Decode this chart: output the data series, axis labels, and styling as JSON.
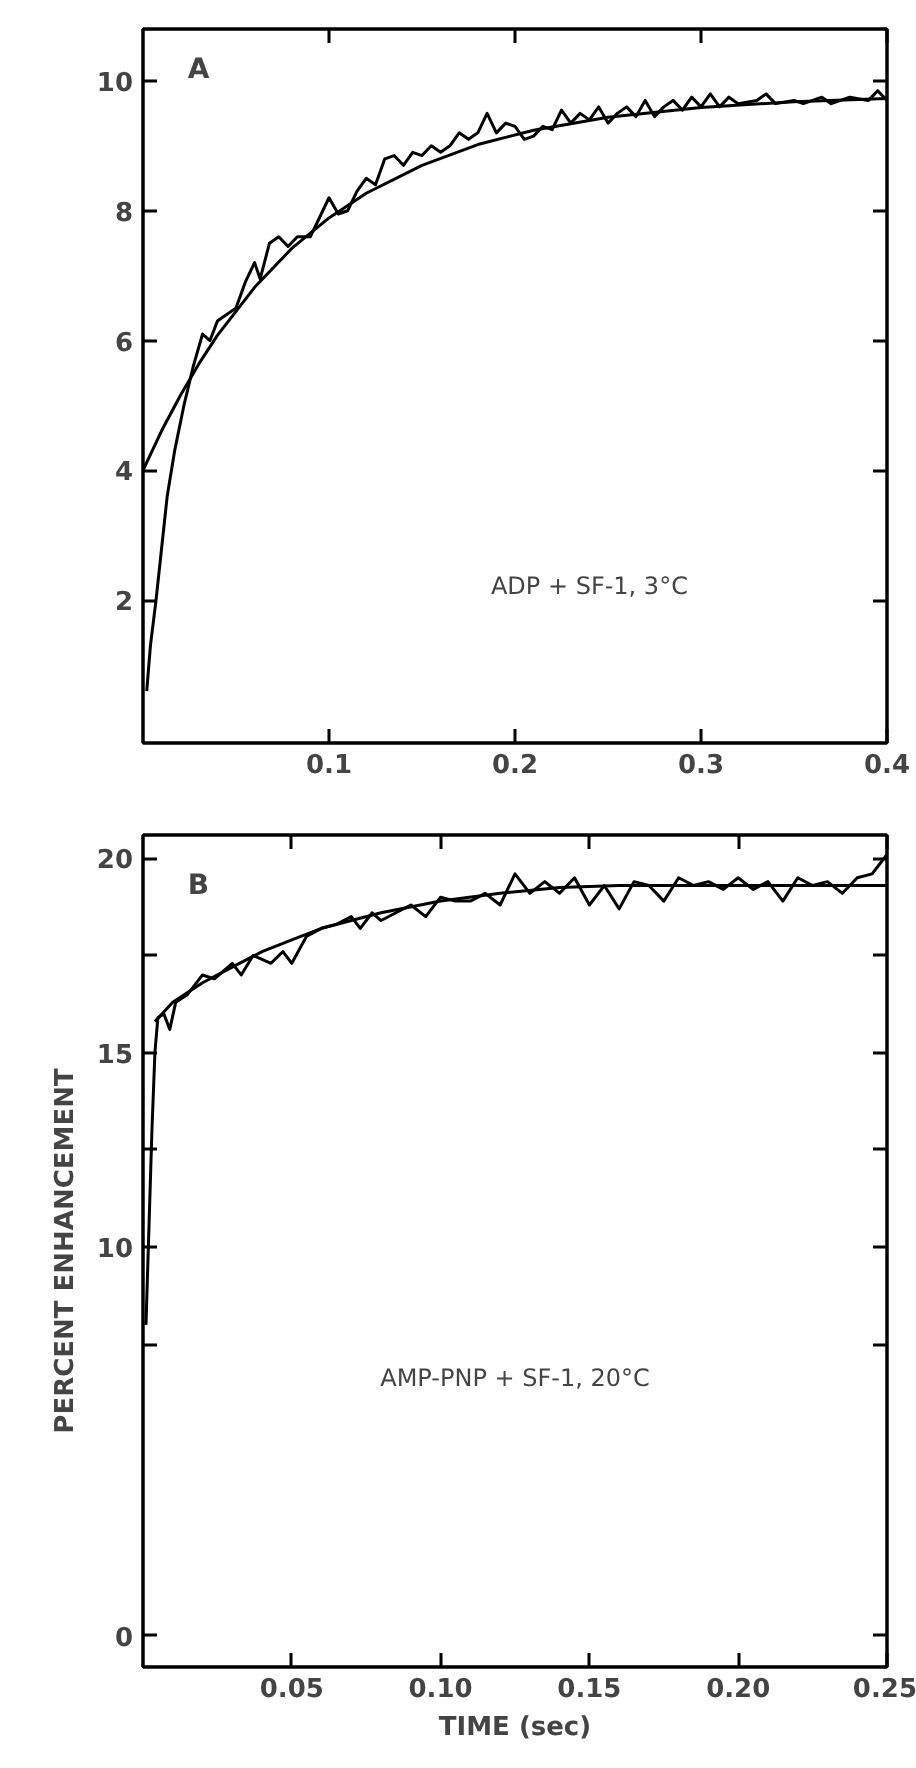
{
  "chart_data": [
    {
      "type": "line",
      "annotations": [
        "A",
        "ADP + SF-1, 3°C"
      ],
      "xlim": [
        0,
        0.4
      ],
      "ylim": [
        -0.2,
        10.8
      ],
      "xticks": [
        0.1,
        0.2,
        0.3,
        0.4
      ],
      "yticks": [
        2,
        4,
        6,
        8,
        10
      ],
      "grid": false,
      "series": [
        {
          "color": "#000000",
          "x": [
            0.002,
            0.004,
            0.007,
            0.01,
            0.013,
            0.017,
            0.022,
            0.027,
            0.032,
            0.036,
            0.04,
            0.045,
            0.05,
            0.055,
            0.06,
            0.063,
            0.068,
            0.073,
            0.078,
            0.083,
            0.09,
            0.095,
            0.1,
            0.105,
            0.11,
            0.115,
            0.12,
            0.125,
            0.13,
            0.135,
            0.14,
            0.145,
            0.15,
            0.155,
            0.16,
            0.165,
            0.17,
            0.175,
            0.18,
            0.185,
            0.19,
            0.195,
            0.2,
            0.205,
            0.21,
            0.215,
            0.22,
            0.225,
            0.23,
            0.235,
            0.24,
            0.245,
            0.25,
            0.255,
            0.26,
            0.265,
            0.27,
            0.275,
            0.28,
            0.285,
            0.29,
            0.295,
            0.3,
            0.305,
            0.31,
            0.315,
            0.32,
            0.33,
            0.335,
            0.34,
            0.35,
            0.355,
            0.36,
            0.365,
            0.37,
            0.38,
            0.39,
            0.395,
            0.4
          ],
          "values": [
            0.6,
            1.3,
            2.0,
            2.8,
            3.6,
            4.3,
            5.0,
            5.6,
            6.1,
            6.0,
            6.3,
            6.4,
            6.5,
            6.9,
            7.2,
            6.95,
            7.5,
            7.6,
            7.45,
            7.6,
            7.6,
            7.9,
            8.2,
            7.95,
            8.0,
            8.3,
            8.5,
            8.4,
            8.8,
            8.85,
            8.7,
            8.9,
            8.85,
            9.0,
            8.9,
            9.0,
            9.2,
            9.1,
            9.2,
            9.5,
            9.2,
            9.35,
            9.3,
            9.1,
            9.15,
            9.3,
            9.25,
            9.55,
            9.35,
            9.5,
            9.4,
            9.6,
            9.35,
            9.5,
            9.6,
            9.45,
            9.7,
            9.45,
            9.6,
            9.7,
            9.55,
            9.75,
            9.6,
            9.8,
            9.6,
            9.75,
            9.65,
            9.7,
            9.8,
            9.65,
            9.7,
            9.65,
            9.7,
            9.75,
            9.65,
            9.75,
            9.7,
            9.85,
            9.7
          ]
        },
        {
          "color": "#000000",
          "x": [
            0,
            0.01,
            0.02,
            0.03,
            0.04,
            0.06,
            0.08,
            0.1,
            0.12,
            0.15,
            0.18,
            0.21,
            0.25,
            0.3,
            0.35,
            0.4
          ],
          "values": [
            4.0,
            4.61,
            5.15,
            5.64,
            6.08,
            6.82,
            7.42,
            7.89,
            8.27,
            8.7,
            9.02,
            9.24,
            9.44,
            9.59,
            9.68,
            9.73
          ]
        }
      ]
    },
    {
      "type": "line",
      "annotations": [
        "B",
        "AMP-PNP + SF-1, 20°C"
      ],
      "xlabel": "TIME (sec)",
      "ylabel": "PERCENT ENHANCEMENT",
      "xlim": [
        0,
        0.25
      ],
      "ylim": [
        -0.8,
        20.6
      ],
      "xticks": [
        0.05,
        {
          "value": 0.1,
          "label": "0.10"
        },
        0.15,
        {
          "value": 0.2,
          "label": "0.20"
        },
        0.25
      ],
      "yticks": [
        0,
        {
          "value": 7.5,
          "label": null
        },
        10,
        {
          "value": 12.5,
          "label": null
        },
        15,
        {
          "value": 17.5,
          "label": null
        },
        20
      ],
      "grid": false,
      "series": [
        {
          "color": "#000000",
          "x": [
            0.001,
            0.002,
            0.003,
            0.004,
            0.005,
            0.007,
            0.009,
            0.011,
            0.015,
            0.02,
            0.024,
            0.027,
            0.03,
            0.033,
            0.037,
            0.04,
            0.043,
            0.047,
            0.05,
            0.055,
            0.06,
            0.065,
            0.07,
            0.073,
            0.077,
            0.08,
            0.085,
            0.09,
            0.095,
            0.1,
            0.105,
            0.11,
            0.115,
            0.12,
            0.125,
            0.13,
            0.135,
            0.14,
            0.145,
            0.15,
            0.155,
            0.16,
            0.165,
            0.17,
            0.175,
            0.18,
            0.185,
            0.19,
            0.195,
            0.2,
            0.205,
            0.21,
            0.215,
            0.22,
            0.225,
            0.23,
            0.235,
            0.24,
            0.245,
            0.25
          ],
          "values": [
            8.0,
            10.5,
            13.0,
            15.0,
            15.9,
            16.0,
            15.6,
            16.3,
            16.5,
            17.0,
            16.9,
            17.1,
            17.3,
            17.0,
            17.5,
            17.4,
            17.3,
            17.6,
            17.3,
            18.0,
            18.2,
            18.3,
            18.5,
            18.2,
            18.6,
            18.4,
            18.6,
            18.8,
            18.5,
            19.0,
            18.9,
            18.9,
            19.1,
            18.8,
            19.6,
            19.1,
            19.4,
            19.1,
            19.5,
            18.8,
            19.3,
            18.7,
            19.4,
            19.3,
            18.9,
            19.5,
            19.3,
            19.4,
            19.2,
            19.5,
            19.2,
            19.4,
            18.9,
            19.5,
            19.3,
            19.4,
            19.1,
            19.5,
            19.6,
            20.1
          ]
        },
        {
          "color": "#000000",
          "x": [
            0.004,
            0.01,
            0.02,
            0.03,
            0.04,
            0.05,
            0.06,
            0.08,
            0.1,
            0.12,
            0.14,
            0.16,
            0.2,
            0.25
          ],
          "values": [
            15.8,
            16.3,
            16.8,
            17.2,
            17.6,
            17.9,
            18.2,
            18.6,
            18.9,
            19.1,
            19.25,
            19.3,
            19.3,
            19.3
          ]
        }
      ]
    }
  ]
}
